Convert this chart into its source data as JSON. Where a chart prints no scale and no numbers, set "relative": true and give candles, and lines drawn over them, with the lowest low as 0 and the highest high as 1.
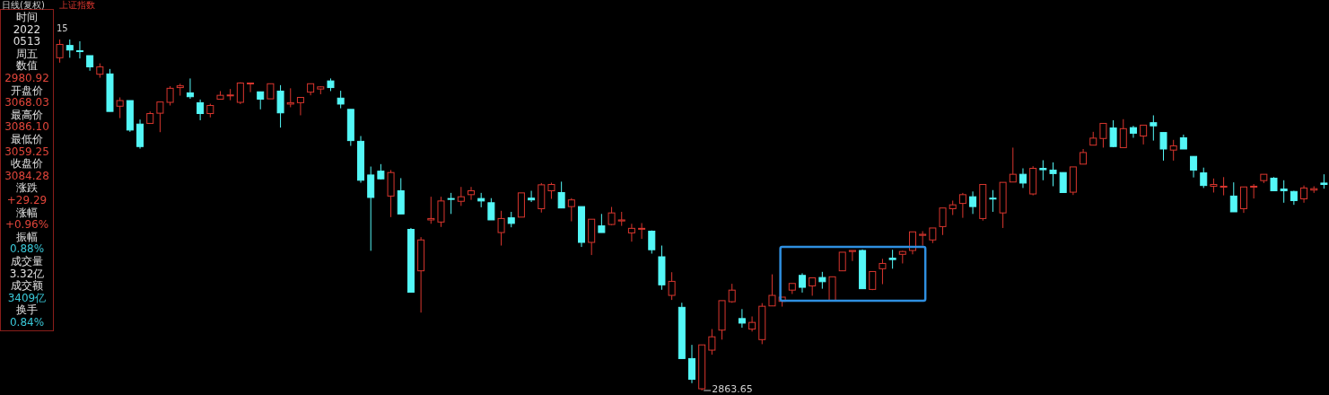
{
  "chart_data": {
    "type": "candlestick",
    "relative": true,
    "categories": [
      null,
      null,
      null,
      null,
      null,
      null,
      null,
      null,
      null,
      null,
      null,
      null,
      null,
      null,
      null,
      null,
      null,
      null,
      null,
      null,
      null,
      null,
      null,
      null,
      null,
      null,
      null,
      null,
      null,
      null,
      null,
      null,
      null,
      null,
      null,
      null,
      null,
      null,
      null,
      null,
      null,
      null,
      null,
      null,
      null,
      null,
      null,
      null,
      null,
      null,
      null,
      null,
      null,
      null,
      null,
      null,
      null,
      null,
      null,
      null,
      null,
      null,
      null,
      null,
      null,
      null,
      null,
      null,
      null,
      null,
      null,
      null,
      null,
      null,
      null,
      null,
      null,
      null,
      null,
      null,
      null,
      null,
      null,
      null,
      null,
      null,
      null,
      null,
      null,
      null,
      null,
      null,
      null,
      null,
      null,
      null,
      null,
      null,
      null,
      null,
      null,
      null,
      null,
      null,
      null,
      null,
      null,
      null,
      null,
      null,
      null,
      null,
      null,
      null,
      null,
      null,
      null,
      null,
      null,
      null,
      null,
      null,
      null,
      null,
      null,
      null,
      null
    ],
    "ohlc": [
      [
        0.948,
        1.0,
        0.934,
        0.986
      ],
      [
        0.983,
        1.0,
        0.948,
        0.97
      ],
      [
        0.968,
        0.995,
        0.946,
        0.966
      ],
      [
        0.954,
        0.954,
        0.911,
        0.922
      ],
      [
        0.901,
        0.932,
        0.891,
        0.922
      ],
      [
        0.902,
        0.916,
        0.795,
        0.795
      ],
      [
        0.81,
        0.835,
        0.776,
        0.826
      ],
      [
        0.826,
        0.826,
        0.737,
        0.742
      ],
      [
        0.759,
        0.772,
        0.689,
        0.695
      ],
      [
        0.761,
        0.795,
        0.761,
        0.789
      ],
      [
        0.79,
        0.822,
        0.736,
        0.822
      ],
      [
        0.821,
        0.867,
        0.812,
        0.861
      ],
      [
        0.863,
        0.874,
        0.84,
        0.868
      ],
      [
        0.848,
        0.889,
        0.831,
        0.837
      ],
      [
        0.82,
        0.829,
        0.77,
        0.789
      ],
      [
        0.789,
        0.817,
        0.778,
        0.812
      ],
      [
        0.83,
        0.853,
        0.83,
        0.841
      ],
      [
        0.84,
        0.859,
        0.827,
        0.842
      ],
      [
        0.821,
        0.878,
        0.816,
        0.876
      ],
      [
        0.874,
        0.876,
        0.85,
        0.876
      ],
      [
        0.851,
        0.851,
        0.801,
        0.83
      ],
      [
        0.831,
        0.874,
        0.831,
        0.874
      ],
      [
        0.853,
        0.87,
        0.749,
        0.791
      ],
      [
        0.816,
        0.861,
        0.807,
        0.82
      ],
      [
        0.82,
        0.835,
        0.784,
        0.835
      ],
      [
        0.85,
        0.874,
        0.841,
        0.874
      ],
      [
        0.859,
        0.867,
        0.844,
        0.865
      ],
      [
        0.882,
        0.889,
        0.853,
        0.863
      ],
      [
        0.833,
        0.854,
        0.804,
        0.816
      ],
      [
        0.801,
        0.801,
        0.697,
        0.712
      ],
      [
        0.71,
        0.725,
        0.592,
        0.599
      ],
      [
        0.614,
        0.638,
        0.398,
        0.55
      ],
      [
        0.625,
        0.645,
        0.601,
        0.603
      ],
      [
        0.554,
        0.628,
        0.494,
        0.621
      ],
      [
        0.569,
        0.605,
        0.503,
        0.503
      ],
      [
        0.459,
        0.463,
        0.28,
        0.28
      ],
      [
        0.341,
        0.437,
        0.222,
        0.429
      ],
      [
        0.486,
        0.552,
        0.475,
        0.49
      ],
      [
        0.48,
        0.552,
        0.466,
        0.54
      ],
      [
        0.547,
        0.563,
        0.503,
        0.545
      ],
      [
        0.539,
        0.58,
        0.526,
        0.552
      ],
      [
        0.558,
        0.58,
        0.543,
        0.569
      ],
      [
        0.547,
        0.563,
        0.522,
        0.54
      ],
      [
        0.535,
        0.548,
        0.486,
        0.486
      ],
      [
        0.45,
        0.512,
        0.413,
        0.49
      ],
      [
        0.492,
        0.509,
        0.465,
        0.476
      ],
      [
        0.494,
        0.563,
        0.494,
        0.563
      ],
      [
        0.548,
        0.569,
        0.537,
        0.543
      ],
      [
        0.518,
        0.591,
        0.507,
        0.586
      ],
      [
        0.569,
        0.592,
        0.546,
        0.587
      ],
      [
        0.564,
        0.595,
        0.52,
        0.52
      ],
      [
        0.524,
        0.548,
        0.482,
        0.543
      ],
      [
        0.524,
        0.524,
        0.409,
        0.422
      ],
      [
        0.422,
        0.488,
        0.386,
        0.488
      ],
      [
        0.469,
        0.503,
        0.45,
        0.45
      ],
      [
        0.473,
        0.523,
        0.471,
        0.506
      ],
      [
        0.483,
        0.509,
        0.469,
        0.486
      ],
      [
        0.449,
        0.475,
        0.424,
        0.462
      ],
      [
        0.46,
        0.477,
        0.432,
        0.462
      ],
      [
        0.454,
        0.456,
        0.39,
        0.401
      ],
      [
        0.381,
        0.413,
        0.287,
        0.301
      ],
      [
        0.271,
        0.337,
        0.258,
        0.311
      ],
      [
        0.237,
        0.25,
        0.091,
        0.091
      ],
      [
        0.091,
        0.13,
        0.021,
        0.032
      ],
      [
        0.005,
        0.13,
        0,
        0.13
      ],
      [
        0.115,
        0.175,
        0.102,
        0.153
      ],
      [
        0.172,
        0.256,
        0.145,
        0.256
      ],
      [
        0.253,
        0.304,
        0.25,
        0.286
      ],
      [
        0.205,
        0.232,
        0.179,
        0.192
      ],
      [
        0.175,
        0.211,
        0.168,
        0.194
      ],
      [
        0.145,
        0.249,
        0.132,
        0.24
      ],
      [
        0.241,
        0.331,
        0.241,
        0.271
      ],
      [
        0.254,
        0.266,
        0.239,
        0.266
      ],
      [
        0.286,
        0.305,
        0.275,
        0.305
      ],
      [
        0.328,
        0.334,
        0.279,
        0.294
      ],
      [
        0.298,
        0.321,
        0.27,
        0.321
      ],
      [
        0.322,
        0.338,
        0.29,
        0.31
      ],
      [
        0.256,
        0.324,
        0.256,
        0.324
      ],
      [
        0.341,
        0.394,
        0.341,
        0.394
      ],
      [
        0.396,
        0.399,
        0.369,
        0.399
      ],
      [
        0.399,
        0.402,
        0.29,
        0.29
      ],
      [
        0.288,
        0.339,
        0.286,
        0.339
      ],
      [
        0.347,
        0.375,
        0.303,
        0.362
      ],
      [
        0.377,
        0.401,
        0.347,
        0.373
      ],
      [
        0.388,
        0.398,
        0.362,
        0.396
      ],
      [
        0.399,
        0.452,
        0.388,
        0.452
      ],
      [
        0.442,
        0.454,
        0.413,
        0.445
      ],
      [
        0.429,
        0.463,
        0.42,
        0.463
      ],
      [
        0.467,
        0.52,
        0.443,
        0.52
      ],
      [
        0.518,
        0.541,
        0.5,
        0.529
      ],
      [
        0.533,
        0.563,
        0.492,
        0.558
      ],
      [
        0.552,
        0.567,
        0.503,
        0.524
      ],
      [
        0.49,
        0.587,
        0.484,
        0.587
      ],
      [
        0.548,
        0.571,
        0.509,
        0.546
      ],
      [
        0.506,
        0.593,
        0.463,
        0.593
      ],
      [
        0.594,
        0.692,
        0.594,
        0.616
      ],
      [
        0.616,
        0.633,
        0.577,
        0.591
      ],
      [
        0.56,
        0.639,
        0.556,
        0.633
      ],
      [
        0.633,
        0.656,
        0.599,
        0.629
      ],
      [
        0.628,
        0.65,
        0.582,
        0.618
      ],
      [
        0.621,
        0.621,
        0.564,
        0.564
      ],
      [
        0.565,
        0.637,
        0.557,
        0.637
      ],
      [
        0.645,
        0.688,
        0.645,
        0.678
      ],
      [
        0.699,
        0.737,
        0.699,
        0.719
      ],
      [
        0.718,
        0.761,
        0.692,
        0.761
      ],
      [
        0.748,
        0.77,
        0.693,
        0.695
      ],
      [
        0.692,
        0.773,
        0.692,
        0.746
      ],
      [
        0.749,
        0.754,
        0.72,
        0.733
      ],
      [
        0.725,
        0.756,
        0.701,
        0.756
      ],
      [
        0.763,
        0.784,
        0.712,
        0.754
      ],
      [
        0.735,
        0.735,
        0.655,
        0.688
      ],
      [
        0.685,
        0.714,
        0.655,
        0.697
      ],
      [
        0.72,
        0.729,
        0.688,
        0.688
      ],
      [
        0.667,
        0.667,
        0.607,
        0.628
      ],
      [
        0.62,
        0.635,
        0.577,
        0.584
      ],
      [
        0.582,
        0.604,
        0.564,
        0.587
      ],
      [
        0.58,
        0.608,
        0.556,
        0.582
      ],
      [
        0.554,
        0.593,
        0.509,
        0.509
      ],
      [
        0.518,
        0.58,
        0.506,
        0.58
      ],
      [
        0.58,
        0.588,
        0.547,
        0.582
      ],
      [
        0.598,
        0.616,
        0.591,
        0.616
      ],
      [
        0.605,
        0.608,
        0.569,
        0.569
      ],
      [
        0.574,
        0.599,
        0.535,
        0.569
      ],
      [
        0.567,
        0.569,
        0.529,
        0.541
      ],
      [
        0.546,
        0.584,
        0.535,
        0.577
      ],
      [
        0.571,
        0.582,
        0.563,
        0.575
      ],
      [
        0.591,
        0.616,
        0.575,
        0.587
      ]
    ],
    "annotations": [
      "日线(复权)",
      "上证指数",
      "时间",
      "2022",
      "0513",
      "周五",
      "数值",
      "2980.92",
      "开盘价",
      "3068.03",
      "最高价",
      "3086.10",
      "最低价",
      "3059.25",
      "收盘价",
      "3084.28",
      "涨跌",
      "+29.29",
      "涨幅",
      "+0.96%",
      "振幅",
      "0.88%",
      "成交量",
      "3.32亿",
      "成交额",
      "3409亿",
      "换手",
      "0.84%",
      "15",
      "2863.65"
    ]
  }
}
